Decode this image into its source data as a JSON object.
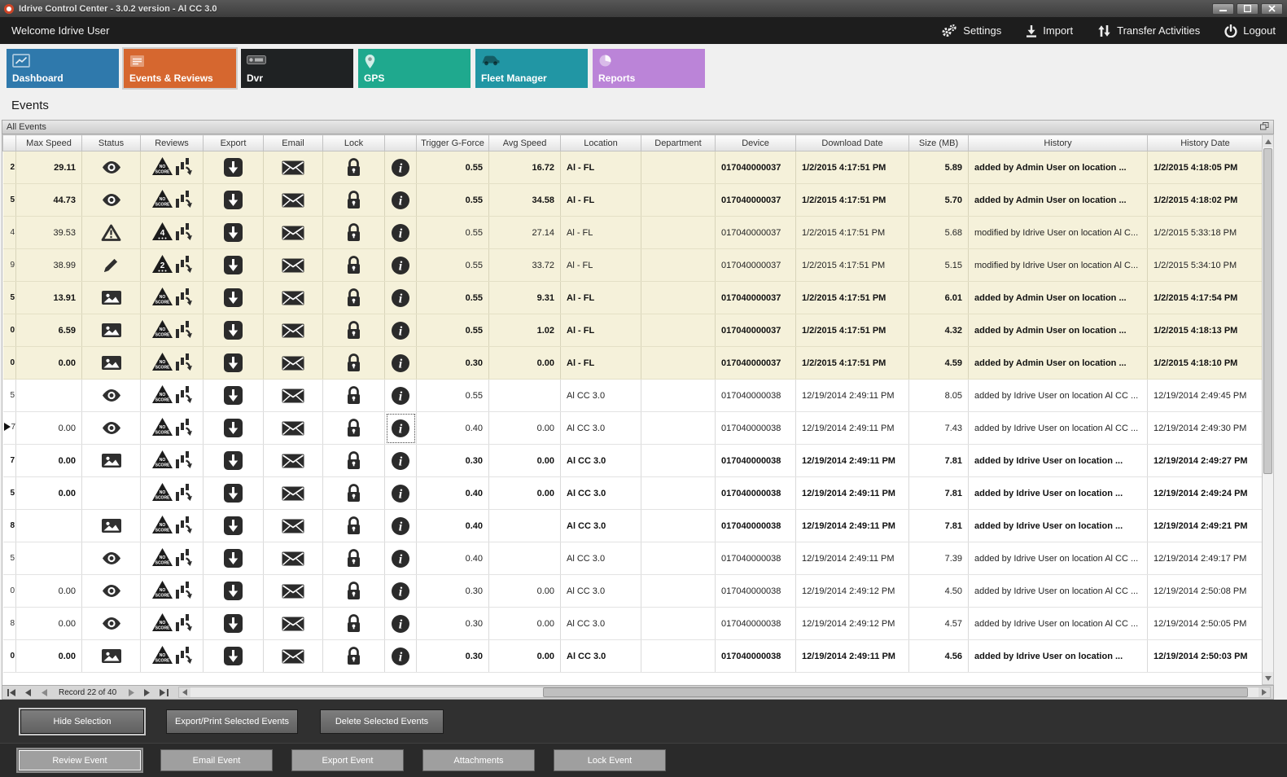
{
  "window": {
    "title": "Idrive Control Center - 3.0.2 version - Al CC 3.0"
  },
  "menubar": {
    "welcome": "Welcome Idrive User",
    "actions": [
      {
        "label": "Settings",
        "icon": "gears"
      },
      {
        "label": "Import",
        "icon": "import"
      },
      {
        "label": "Transfer Activities",
        "icon": "transfer"
      },
      {
        "label": "Logout",
        "icon": "power"
      }
    ]
  },
  "tabs": [
    {
      "label": "Dashboard",
      "color": "#2f79ac",
      "icon": "dashboard",
      "selected": false
    },
    {
      "label": "Events & Reviews",
      "color": "#d6672f",
      "icon": "events",
      "selected": true
    },
    {
      "label": "Dvr",
      "color": "#1f2223",
      "icon": "dvr",
      "selected": false
    },
    {
      "label": "GPS",
      "color": "#1fa98e",
      "icon": "gps",
      "selected": false
    },
    {
      "label": "Fleet Manager",
      "color": "#2196a4",
      "icon": "fleet",
      "selected": false
    },
    {
      "label": "Reports",
      "color": "#bb84d8",
      "icon": "reports",
      "selected": false
    }
  ],
  "page_title": "Events",
  "panel": {
    "title": "All Events"
  },
  "grid": {
    "columns": [
      "Max Speed",
      "Status",
      "Reviews",
      "Export",
      "Email",
      "Lock",
      "",
      "Trigger G-Force",
      "Avg Speed",
      "Location",
      "Department",
      "Device",
      "Download Date",
      "Size (MB)",
      "History",
      "History Date"
    ],
    "rows": [
      {
        "marker": "2",
        "selected": false,
        "info_focused": false,
        "max_speed": "29.11",
        "status": "eye",
        "review": "NO SCORE",
        "trigger": "0.55",
        "avg_speed": "16.72",
        "location": "Al - FL",
        "department": "",
        "device": "017040000037",
        "download_date": "1/2/2015 4:17:51 PM",
        "size": "5.89",
        "history": "added by Admin User on location ...",
        "history_date": "1/2/2015 4:18:05 PM",
        "bold": true,
        "beige": true
      },
      {
        "marker": "5",
        "selected": false,
        "info_focused": false,
        "max_speed": "44.73",
        "status": "eye",
        "review": "NO SCORE",
        "trigger": "0.55",
        "avg_speed": "34.58",
        "location": "Al - FL",
        "department": "",
        "device": "017040000037",
        "download_date": "1/2/2015 4:17:51 PM",
        "size": "5.70",
        "history": "added by Admin User on location ...",
        "history_date": "1/2/2015 4:18:02 PM",
        "bold": true,
        "beige": true
      },
      {
        "marker": "4",
        "selected": false,
        "info_focused": false,
        "max_speed": "39.53",
        "status": "warning",
        "review": "4",
        "trigger": "0.55",
        "avg_speed": "27.14",
        "location": "Al - FL",
        "department": "",
        "device": "017040000037",
        "download_date": "1/2/2015 4:17:51 PM",
        "size": "5.68",
        "history": "modified by Idrive User on location Al C...",
        "history_date": "1/2/2015 5:33:18 PM",
        "bold": false,
        "beige": true
      },
      {
        "marker": "9",
        "selected": false,
        "info_focused": false,
        "max_speed": "38.99",
        "status": "pencil",
        "review": "2",
        "trigger": "0.55",
        "avg_speed": "33.72",
        "location": "Al - FL",
        "department": "",
        "device": "017040000037",
        "download_date": "1/2/2015 4:17:51 PM",
        "size": "5.15",
        "history": "modified by Idrive User on location Al C...",
        "history_date": "1/2/2015 5:34:10 PM",
        "bold": false,
        "beige": true
      },
      {
        "marker": "5",
        "selected": false,
        "info_focused": false,
        "max_speed": "13.91",
        "status": "image",
        "review": "NO SCORE",
        "trigger": "0.55",
        "avg_speed": "9.31",
        "location": "Al - FL",
        "department": "",
        "device": "017040000037",
        "download_date": "1/2/2015 4:17:51 PM",
        "size": "6.01",
        "history": "added by Admin User on location ...",
        "history_date": "1/2/2015 4:17:54 PM",
        "bold": true,
        "beige": true
      },
      {
        "marker": "0",
        "selected": false,
        "info_focused": false,
        "max_speed": "6.59",
        "status": "image",
        "review": "NO SCORE",
        "trigger": "0.55",
        "avg_speed": "1.02",
        "location": "Al - FL",
        "department": "",
        "device": "017040000037",
        "download_date": "1/2/2015 4:17:51 PM",
        "size": "4.32",
        "history": "added by Admin User on location ...",
        "history_date": "1/2/2015 4:18:13 PM",
        "bold": true,
        "beige": true
      },
      {
        "marker": "0",
        "selected": false,
        "info_focused": false,
        "max_speed": "0.00",
        "status": "image",
        "review": "NO SCORE",
        "trigger": "0.30",
        "avg_speed": "0.00",
        "location": "Al - FL",
        "department": "",
        "device": "017040000037",
        "download_date": "1/2/2015 4:17:51 PM",
        "size": "4.59",
        "history": "added by Admin User on location ...",
        "history_date": "1/2/2015 4:18:10 PM",
        "bold": true,
        "beige": true
      },
      {
        "marker": "5",
        "selected": false,
        "info_focused": false,
        "max_speed": "",
        "status": "eye",
        "review": "NO SCORE",
        "trigger": "0.55",
        "avg_speed": "",
        "location": "Al CC 3.0",
        "department": "",
        "device": "017040000038",
        "download_date": "12/19/2014 2:49:11 PM",
        "size": "8.05",
        "history": "added by Idrive User on location Al CC ...",
        "history_date": "12/19/2014 2:49:45 PM",
        "bold": false,
        "beige": false
      },
      {
        "marker": "7",
        "selected": true,
        "info_focused": true,
        "max_speed": "0.00",
        "status": "eye",
        "review": "NO SCORE",
        "trigger": "0.40",
        "avg_speed": "0.00",
        "location": "Al CC 3.0",
        "department": "",
        "device": "017040000038",
        "download_date": "12/19/2014 2:49:11 PM",
        "size": "7.43",
        "history": "added by Idrive User on location Al CC ...",
        "history_date": "12/19/2014 2:49:30 PM",
        "bold": false,
        "beige": false
      },
      {
        "marker": "7",
        "selected": false,
        "info_focused": false,
        "max_speed": "0.00",
        "status": "image",
        "review": "NO SCORE",
        "trigger": "0.30",
        "avg_speed": "0.00",
        "location": "Al CC 3.0",
        "department": "",
        "device": "017040000038",
        "download_date": "12/19/2014 2:49:11 PM",
        "size": "7.81",
        "history": "added by Idrive User on location ...",
        "history_date": "12/19/2014 2:49:27 PM",
        "bold": true,
        "beige": false
      },
      {
        "marker": "5",
        "selected": false,
        "info_focused": false,
        "max_speed": "0.00",
        "status": "",
        "review": "NO SCORE",
        "trigger": "0.40",
        "avg_speed": "0.00",
        "location": "Al CC 3.0",
        "department": "",
        "device": "017040000038",
        "download_date": "12/19/2014 2:49:11 PM",
        "size": "7.81",
        "history": "added by Idrive User on location ...",
        "history_date": "12/19/2014 2:49:24 PM",
        "bold": true,
        "beige": false
      },
      {
        "marker": "8",
        "selected": false,
        "info_focused": false,
        "max_speed": "",
        "status": "image",
        "review": "NO SCORE",
        "trigger": "0.40",
        "avg_speed": "",
        "location": "Al CC 3.0",
        "department": "",
        "device": "017040000038",
        "download_date": "12/19/2014 2:49:11 PM",
        "size": "7.81",
        "history": "added by Idrive User on location ...",
        "history_date": "12/19/2014 2:49:21 PM",
        "bold": true,
        "beige": false
      },
      {
        "marker": "5",
        "selected": false,
        "info_focused": false,
        "max_speed": "",
        "status": "eye",
        "review": "NO SCORE",
        "trigger": "0.40",
        "avg_speed": "",
        "location": "Al CC 3.0",
        "department": "",
        "device": "017040000038",
        "download_date": "12/19/2014 2:49:11 PM",
        "size": "7.39",
        "history": "added by Idrive User on location Al CC ...",
        "history_date": "12/19/2014 2:49:17 PM",
        "bold": false,
        "beige": false
      },
      {
        "marker": "0",
        "selected": false,
        "info_focused": false,
        "max_speed": "0.00",
        "status": "eye",
        "review": "NO SCORE",
        "trigger": "0.30",
        "avg_speed": "0.00",
        "location": "Al CC 3.0",
        "department": "",
        "device": "017040000038",
        "download_date": "12/19/2014 2:49:12 PM",
        "size": "4.50",
        "history": "added by Idrive User on location Al CC ...",
        "history_date": "12/19/2014 2:50:08 PM",
        "bold": false,
        "beige": false
      },
      {
        "marker": "8",
        "selected": false,
        "info_focused": false,
        "max_speed": "0.00",
        "status": "eye",
        "review": "NO SCORE",
        "trigger": "0.30",
        "avg_speed": "0.00",
        "location": "Al CC 3.0",
        "department": "",
        "device": "017040000038",
        "download_date": "12/19/2014 2:49:12 PM",
        "size": "4.57",
        "history": "added by Idrive User on location Al CC ...",
        "history_date": "12/19/2014 2:50:05 PM",
        "bold": false,
        "beige": false
      },
      {
        "marker": "0",
        "selected": false,
        "info_focused": false,
        "max_speed": "0.00",
        "status": "image",
        "review": "NO SCORE",
        "trigger": "0.30",
        "avg_speed": "0.00",
        "location": "Al CC 3.0",
        "department": "",
        "device": "017040000038",
        "download_date": "12/19/2014 2:49:11 PM",
        "size": "4.56",
        "history": "added by Idrive User on location ...",
        "history_date": "12/19/2014 2:50:03 PM",
        "bold": true,
        "beige": false
      }
    ]
  },
  "pager": {
    "record_label": "Record 22 of 40"
  },
  "footer": {
    "selection_buttons": [
      {
        "label": "Hide Selection",
        "focused": true
      },
      {
        "label": "Export/Print Selected Events",
        "focused": false
      },
      {
        "label": "Delete Selected  Events",
        "focused": false
      }
    ],
    "event_buttons": [
      {
        "label": "Review Event",
        "focused": true
      },
      {
        "label": "Email Event",
        "focused": false
      },
      {
        "label": "Export Event",
        "focused": false
      },
      {
        "label": "Attachments",
        "focused": false
      },
      {
        "label": "Lock Event",
        "focused": false
      }
    ]
  },
  "colors": {
    "beige_row": "#f5f1da",
    "menubar": "#1d1d1d",
    "accent_orange": "#d6672f"
  }
}
